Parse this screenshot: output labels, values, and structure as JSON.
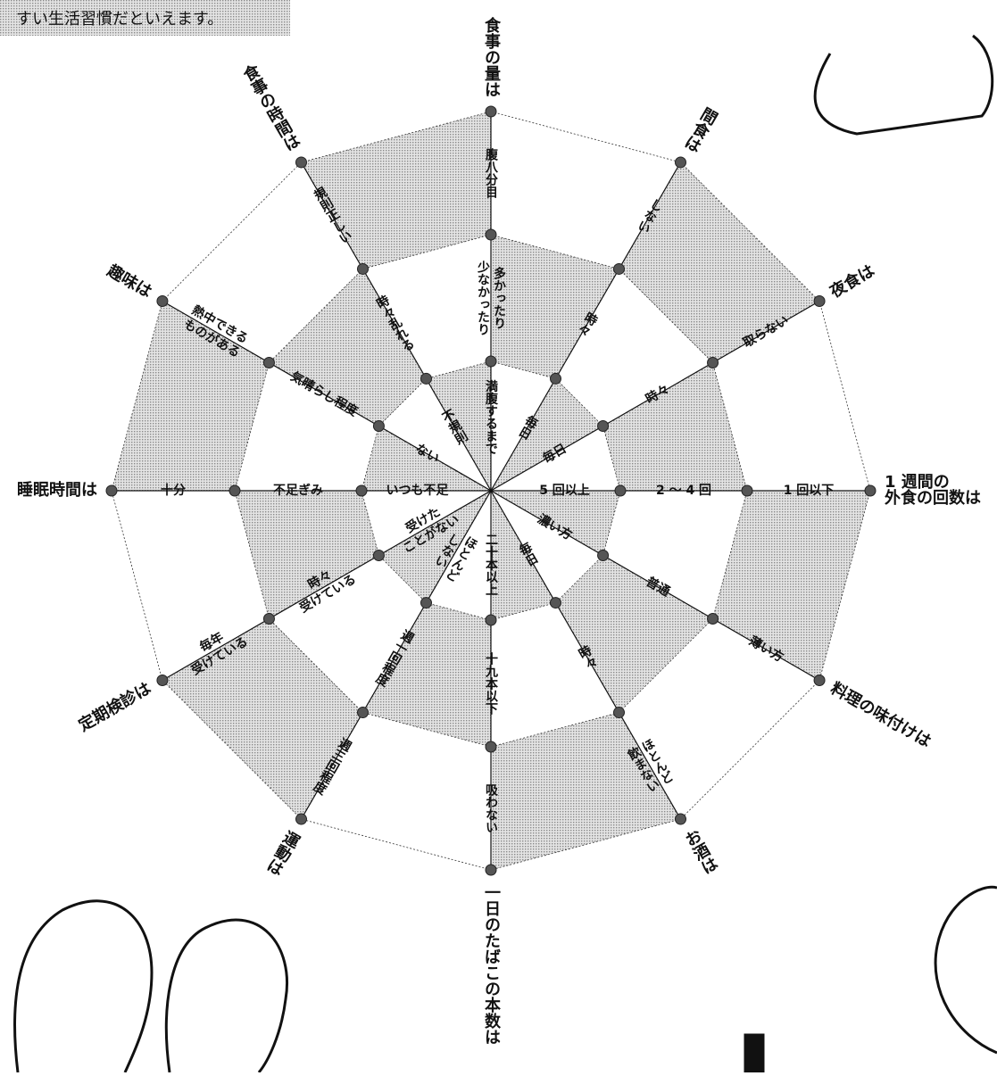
{
  "intro": "すい生活習慣だといえます。",
  "axes": [
    {
      "name": [
        "食事の量は"
      ],
      "levels": [
        [
          "腹八分目"
        ],
        [
          "多かったり",
          "少なかったり"
        ],
        [
          "満腹するまで"
        ]
      ]
    },
    {
      "name": [
        "間食は"
      ],
      "levels": [
        [
          "しない"
        ],
        [
          "時々"
        ],
        [
          "毎日"
        ]
      ]
    },
    {
      "name": [
        "夜食は"
      ],
      "levels": [
        [
          "取らない"
        ],
        [
          "時々"
        ],
        [
          "毎日"
        ]
      ]
    },
    {
      "name": [
        "1 週間の",
        "外食の回数は"
      ],
      "levels": [
        [
          "1 回以下"
        ],
        [
          "2 〜 4 回"
        ],
        [
          "5 回以上"
        ]
      ]
    },
    {
      "name": [
        "料理の味付けは"
      ],
      "levels": [
        [
          "薄い方"
        ],
        [
          "普通"
        ],
        [
          "濃い方"
        ]
      ]
    },
    {
      "name": [
        "お酒は"
      ],
      "levels": [
        [
          "ほとんど",
          "飲まない"
        ],
        [
          "時々"
        ],
        [
          "毎日"
        ]
      ]
    },
    {
      "name": [
        "一日のたばこの本数は"
      ],
      "levels": [
        [
          "吸わない"
        ],
        [
          "十九本以下"
        ],
        [
          "二十本以上"
        ]
      ]
    },
    {
      "name": [
        "運動は"
      ],
      "levels": [
        [
          "週三回程度"
        ],
        [
          "週一回程度"
        ],
        [
          "ほとんど",
          "しない"
        ]
      ]
    },
    {
      "name": [
        "定期検診は"
      ],
      "levels": [
        [
          "毎年",
          "受けている"
        ],
        [
          "時々",
          "受けている"
        ],
        [
          "受けた",
          "ことがない"
        ]
      ]
    },
    {
      "name": [
        "睡眠時間は"
      ],
      "levels": [
        [
          "十分"
        ],
        [
          "不足ぎみ"
        ],
        [
          "いつも不足"
        ]
      ]
    },
    {
      "name": [
        "趣味は"
      ],
      "levels": [
        [
          "熱中できる",
          "ものがある"
        ],
        [
          "気晴らし程度"
        ],
        [
          "ない"
        ]
      ]
    },
    {
      "name": [
        "食事の時間は"
      ],
      "levels": [
        [
          "規則正しい"
        ],
        [
          "時々乱れる"
        ],
        [
          "不規則"
        ]
      ]
    }
  ]
}
